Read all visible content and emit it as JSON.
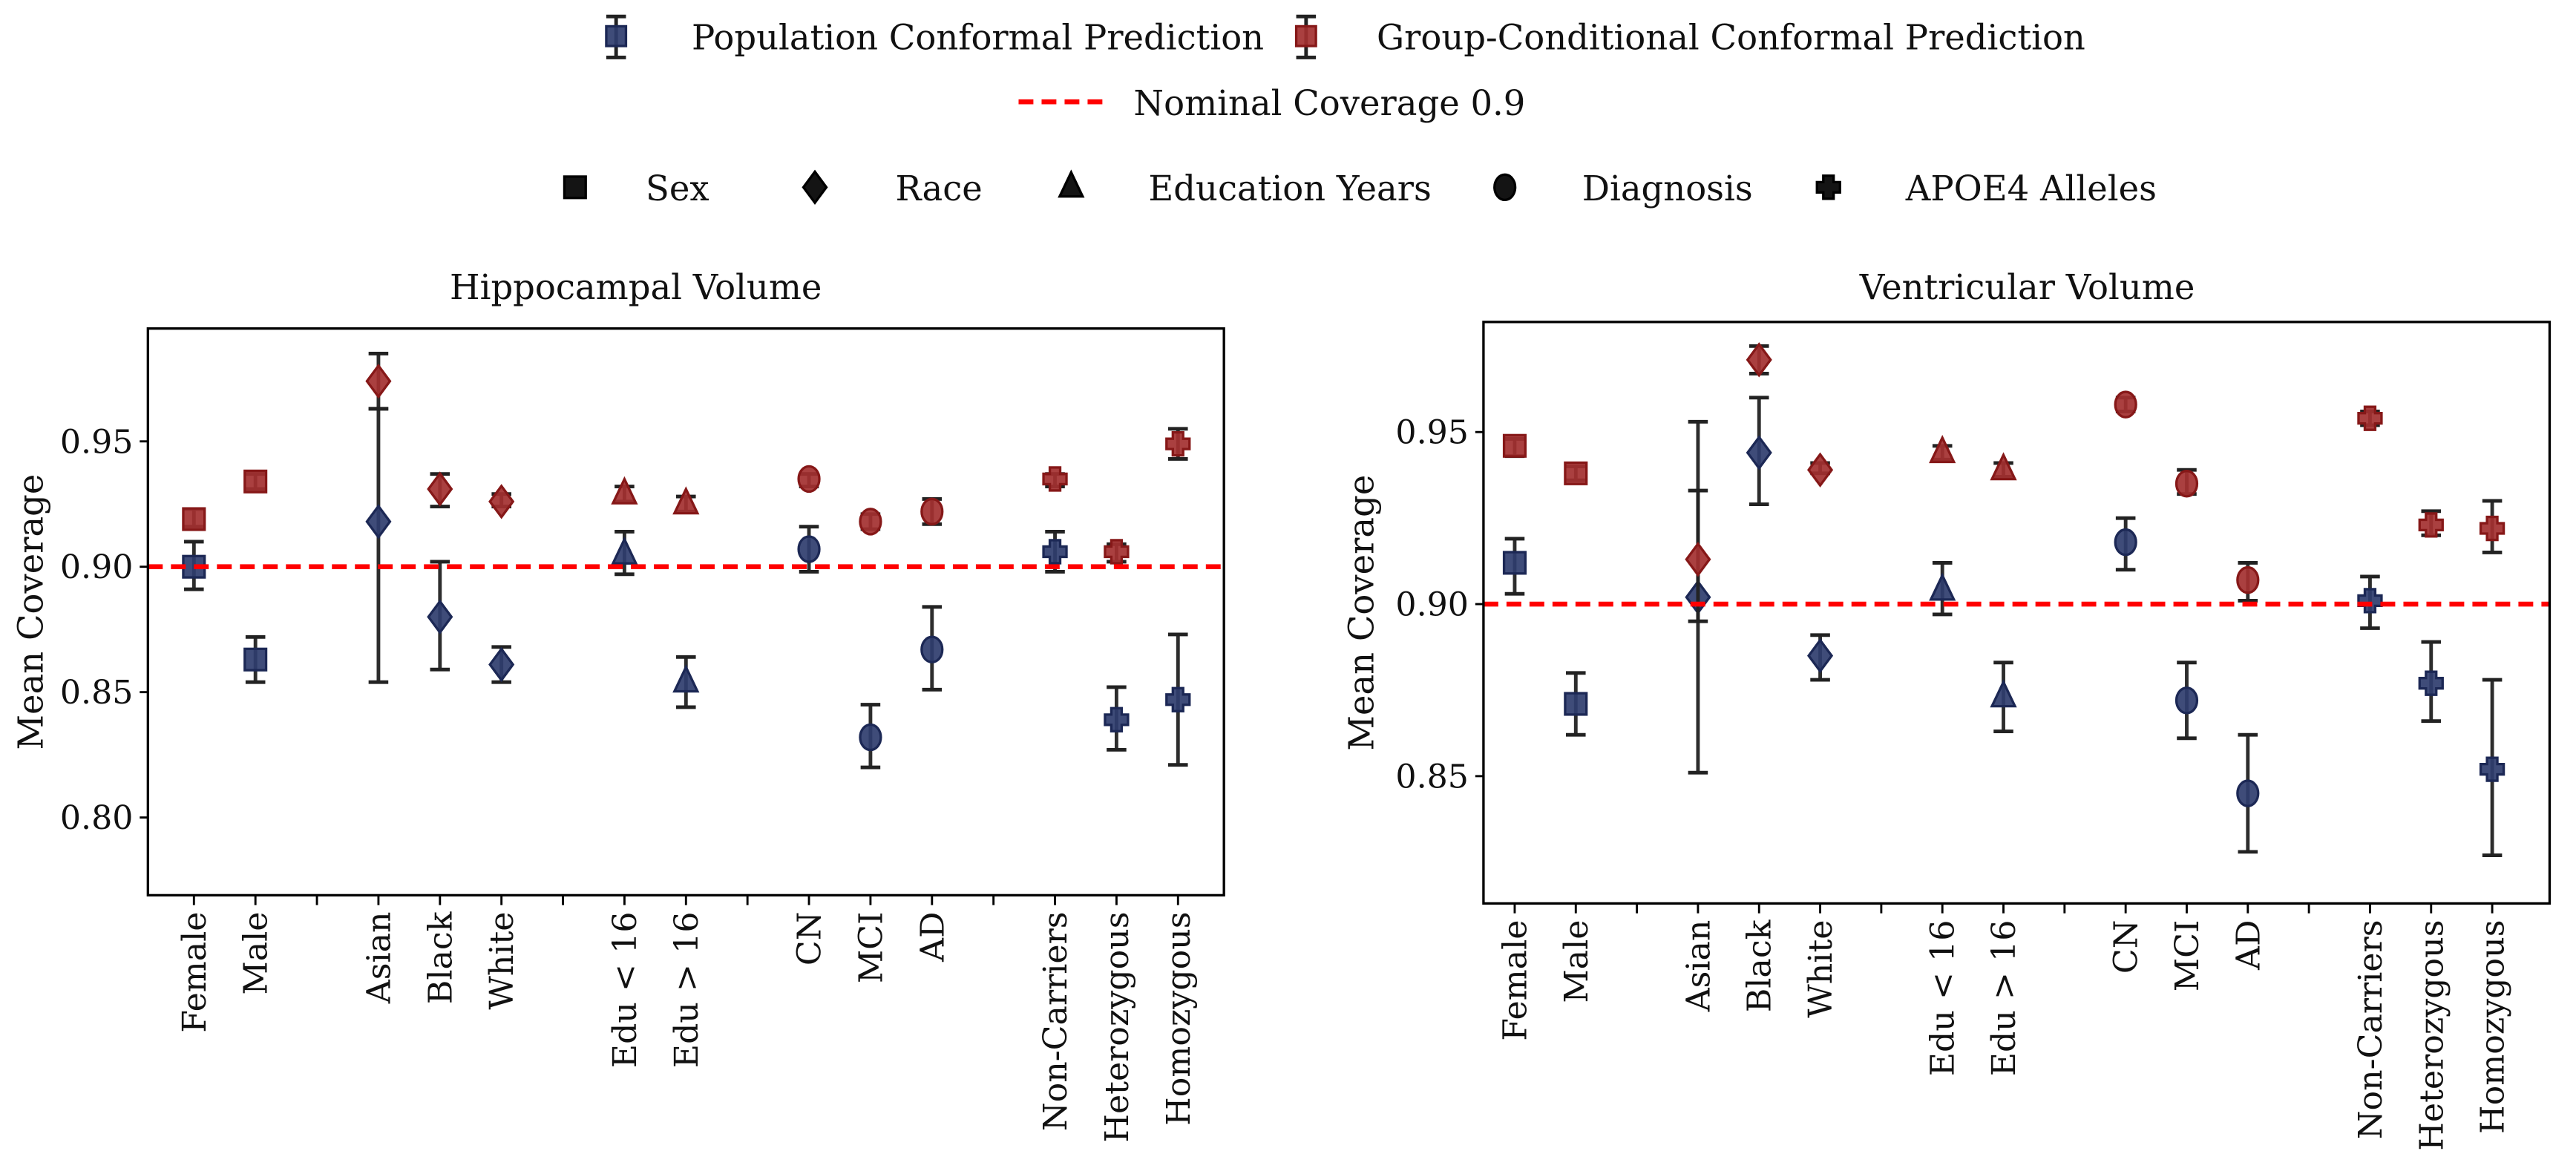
{
  "legend": {
    "methods": [
      {
        "label": "Population Conformal Prediction",
        "color": "#2f3d6e"
      },
      {
        "label": "Group-Conditional Conformal Prediction",
        "color": "#a33030"
      }
    ],
    "nominal": {
      "label": "Nominal Coverage 0.9",
      "color": "#ff0000"
    },
    "groups": [
      {
        "label": "Sex",
        "marker": "square"
      },
      {
        "label": "Race",
        "marker": "diamond"
      },
      {
        "label": "Education Years",
        "marker": "triangle"
      },
      {
        "label": "Diagnosis",
        "marker": "circle"
      },
      {
        "label": "APOE4 Alleles",
        "marker": "plus"
      }
    ]
  },
  "chart_data": [
    {
      "type": "scatter",
      "title": "Hippocampal Volume",
      "ylabel": "Mean Coverage",
      "xlabel": "",
      "ylim": [
        0.769,
        0.995
      ],
      "yticks": [
        "0.80",
        "0.85",
        "0.90",
        "0.95"
      ],
      "reference_line": 0.9,
      "categories": [
        "Female",
        "Male",
        "",
        "Asian",
        "Black",
        "White",
        "",
        "Edu < 16",
        "Edu > 16",
        "",
        "CN",
        "MCI",
        "AD",
        "",
        "Non-Carriers",
        "Heterozygous",
        "Homozygous"
      ],
      "markers": [
        "square",
        "square",
        "",
        "diamond",
        "diamond",
        "diamond",
        "",
        "triangle",
        "triangle",
        "",
        "circle",
        "circle",
        "circle",
        "",
        "plus",
        "plus",
        "plus"
      ],
      "series": [
        {
          "name": "Population Conformal Prediction",
          "values": [
            0.9,
            0.863,
            null,
            0.918,
            0.88,
            0.861,
            null,
            0.905,
            0.854,
            null,
            0.907,
            0.832,
            0.867,
            null,
            0.906,
            0.839,
            0.847
          ],
          "lower": [
            0.891,
            0.854,
            null,
            0.854,
            0.859,
            0.854,
            null,
            0.897,
            0.844,
            null,
            0.898,
            0.82,
            0.851,
            null,
            0.898,
            0.827,
            0.821
          ],
          "upper": [
            0.91,
            0.872,
            null,
            0.963,
            0.902,
            0.868,
            null,
            0.914,
            0.864,
            null,
            0.916,
            0.845,
            0.884,
            null,
            0.914,
            0.852,
            0.873
          ]
        },
        {
          "name": "Group-Conditional Conformal Prediction",
          "values": [
            0.919,
            0.934,
            null,
            0.974,
            0.931,
            0.926,
            null,
            0.929,
            0.925,
            null,
            0.935,
            0.918,
            0.922,
            null,
            0.935,
            0.906,
            0.949
          ],
          "lower": [
            0.916,
            0.931,
            null,
            0.963,
            0.924,
            0.924,
            null,
            0.926,
            0.922,
            null,
            0.932,
            0.915,
            0.917,
            null,
            0.932,
            0.902,
            0.943
          ],
          "upper": [
            0.923,
            0.937,
            null,
            0.985,
            0.937,
            0.929,
            null,
            0.932,
            0.928,
            null,
            0.937,
            0.921,
            0.927,
            null,
            0.937,
            0.909,
            0.955
          ]
        }
      ]
    },
    {
      "type": "scatter",
      "title": "Ventricular Volume",
      "ylabel": "Mean Coverage",
      "xlabel": "",
      "ylim": [
        0.813,
        0.982
      ],
      "yticks": [
        "0.85",
        "0.90",
        "0.95"
      ],
      "reference_line": 0.9,
      "categories": [
        "Female",
        "Male",
        "",
        "Asian",
        "Black",
        "White",
        "",
        "Edu < 16",
        "Edu > 16",
        "",
        "CN",
        "MCI",
        "AD",
        "",
        "Non-Carriers",
        "Heterozygous",
        "Homozygous"
      ],
      "markers": [
        "square",
        "square",
        "",
        "diamond",
        "diamond",
        "diamond",
        "",
        "triangle",
        "triangle",
        "",
        "circle",
        "circle",
        "circle",
        "",
        "plus",
        "plus",
        "plus"
      ],
      "series": [
        {
          "name": "Population Conformal Prediction",
          "values": [
            0.912,
            0.871,
            null,
            0.902,
            0.944,
            0.885,
            null,
            0.904,
            0.873,
            null,
            0.918,
            0.872,
            0.845,
            null,
            0.901,
            0.877,
            0.852
          ],
          "lower": [
            0.903,
            0.862,
            null,
            0.851,
            0.929,
            0.878,
            null,
            0.897,
            0.863,
            null,
            0.91,
            0.861,
            0.828,
            null,
            0.893,
            0.866,
            0.827
          ],
          "upper": [
            0.919,
            0.88,
            null,
            0.953,
            0.96,
            0.891,
            null,
            0.912,
            0.883,
            null,
            0.925,
            0.883,
            0.862,
            null,
            0.908,
            0.889,
            0.878
          ]
        },
        {
          "name": "Group-Conditional Conformal Prediction",
          "values": [
            0.946,
            0.938,
            null,
            0.913,
            0.971,
            0.939,
            null,
            0.944,
            0.939,
            null,
            0.958,
            0.935,
            0.907,
            null,
            0.954,
            0.923,
            0.922
          ],
          "lower": [
            0.943,
            0.936,
            null,
            0.895,
            0.967,
            0.938,
            null,
            0.942,
            0.937,
            null,
            0.956,
            0.932,
            0.901,
            null,
            0.952,
            0.92,
            0.915
          ],
          "upper": [
            0.948,
            0.94,
            null,
            0.933,
            0.975,
            0.941,
            null,
            0.946,
            0.941,
            null,
            0.96,
            0.939,
            0.912,
            null,
            0.956,
            0.927,
            0.93
          ]
        }
      ]
    }
  ]
}
